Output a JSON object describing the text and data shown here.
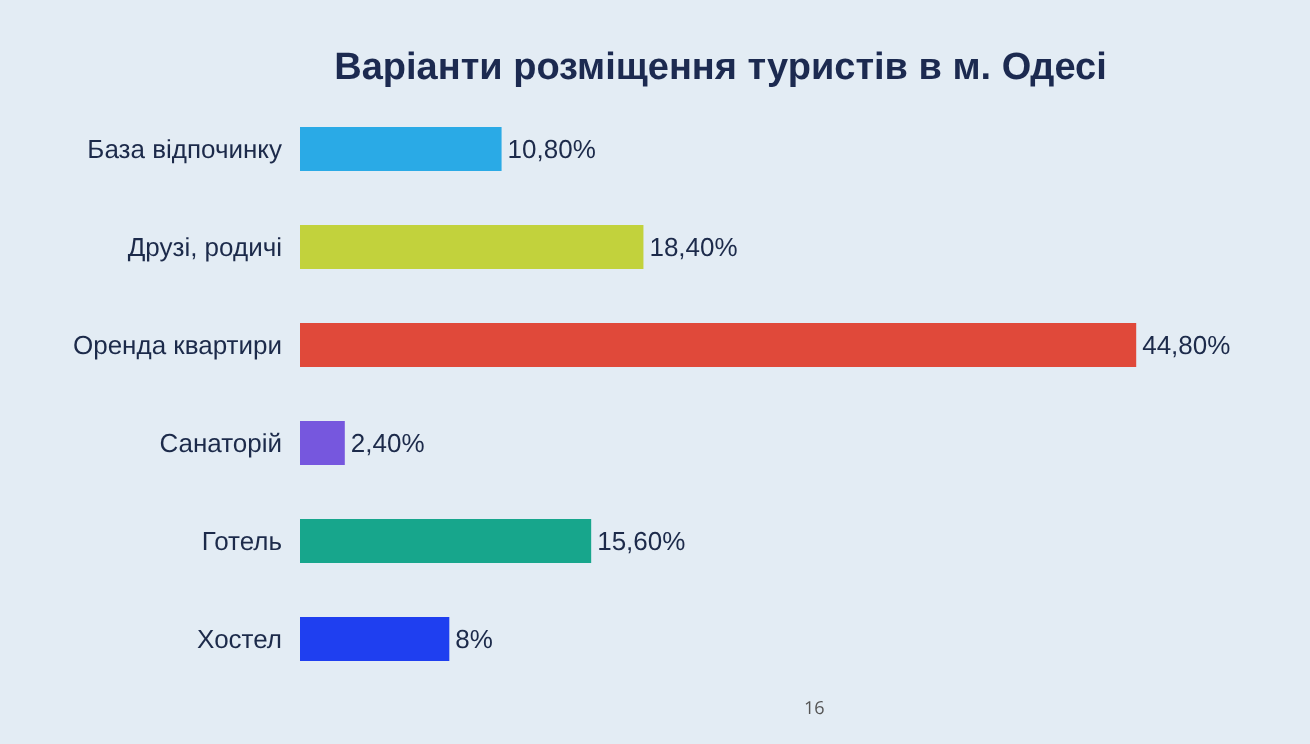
{
  "chart_data": {
    "type": "bar",
    "orientation": "horizontal",
    "title": "Варіанти розміщення туристів в м. Одесі",
    "categories": [
      "База відпочинку",
      "Друзі, родичі",
      "Оренда квартири",
      "Санаторій",
      "Готель",
      "Хостел"
    ],
    "values": [
      10.8,
      18.4,
      44.8,
      2.4,
      15.6,
      8
    ],
    "colors": [
      "#2aaae6",
      "#c2d23c",
      "#e0493a",
      "#7657de",
      "#17a68c",
      "#1f3ff0"
    ],
    "value_labels": [
      "10,80%",
      "18,40%",
      "44,80%",
      "2,40%",
      "15,60%",
      "8%"
    ],
    "annotations": [
      "16"
    ],
    "grid": false,
    "legend": false
  }
}
